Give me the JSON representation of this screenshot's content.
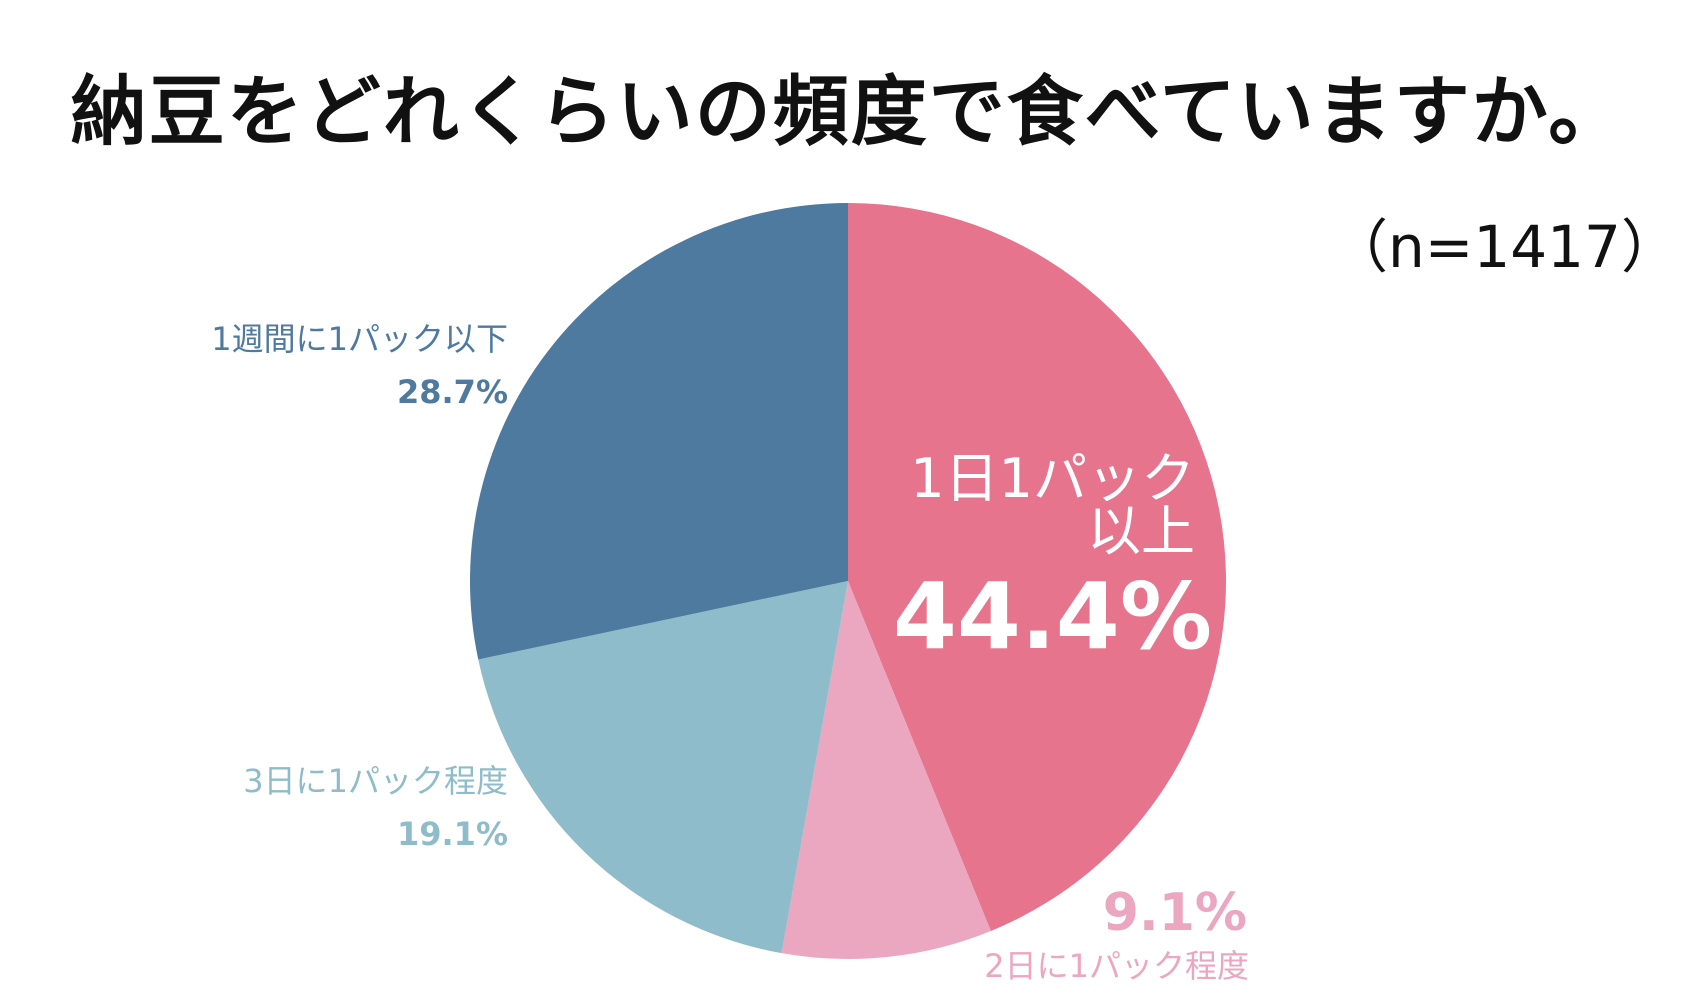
{
  "title": "納豆をどれくらいの頻度で食べていますか。",
  "sample_size": "（n=1417）",
  "colors": {
    "daily": "#e5748c",
    "every_two_days": "#eba7bf",
    "every_three_days": "#8fbcca",
    "weekly_or_less": "#4d7a9e",
    "white": "#ffffff"
  },
  "chart_data": {
    "type": "pie",
    "title": "納豆をどれくらいの頻度で食べていますか。",
    "start_angle_deg": 0,
    "direction": "clockwise",
    "slices": [
      {
        "label_lines": [
          "1日1パック",
          "以上"
        ],
        "value": 44.4,
        "value_label": "44.4%",
        "color": "#e5748c",
        "label_placement": "inside"
      },
      {
        "label_lines": [
          "2日に1パック程度"
        ],
        "value": 9.1,
        "value_label": "9.1%",
        "color": "#eba7bf",
        "label_placement": "outside-bottom"
      },
      {
        "label_lines": [
          "3日に1パック程度"
        ],
        "value": 19.1,
        "value_label": "19.1%",
        "color": "#8fbcca",
        "label_placement": "outside-left"
      },
      {
        "label_lines": [
          "1週間に1パック以下"
        ],
        "value": 28.7,
        "value_label": "28.7%",
        "color": "#4d7a9e",
        "label_placement": "outside-left"
      }
    ]
  }
}
